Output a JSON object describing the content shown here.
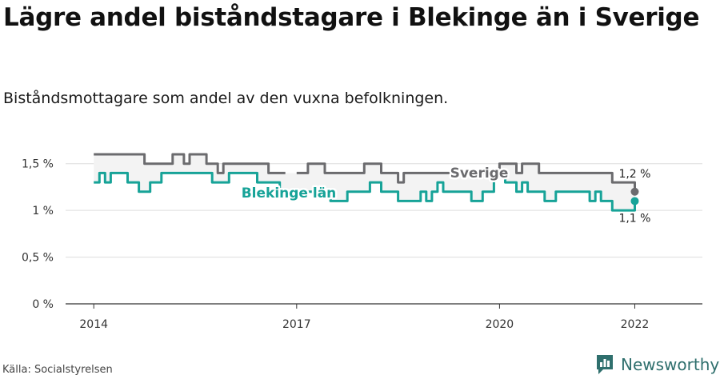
{
  "header": {
    "title": "Lägre andel biståndstagare i Blekinge än i Sverige",
    "subtitle": "Biståndsmottagare som andel av den vuxna befolkningen."
  },
  "footer": {
    "source": "Källa: Socialstyrelsen",
    "brand": "Newsworthy"
  },
  "colors": {
    "sverige": "#6b6b6e",
    "blekinge": "#17a398",
    "grid": "#dddddd",
    "band": "#f3f3f3",
    "brand": "#2f6f6d"
  },
  "chart_data": {
    "type": "line",
    "x_axis": {
      "type": "date",
      "range": [
        "2013-08",
        "2023-01"
      ],
      "ticks": [
        "2014",
        "2017",
        "2020",
        "2022"
      ]
    },
    "y_axis": {
      "range": [
        0,
        1.6
      ],
      "ticks": [
        "0 %",
        "0,5 %",
        "1 %",
        "1,5 %"
      ],
      "tick_values": [
        0,
        0.5,
        1,
        1.5
      ]
    },
    "grid": "horizontal",
    "series": [
      {
        "name": "Sverige",
        "end_label": "1,2 %",
        "x": [
          "2014-01",
          "2014-02",
          "2014-03",
          "2014-04",
          "2014-05",
          "2014-06",
          "2014-07",
          "2014-08",
          "2014-09",
          "2014-10",
          "2014-11",
          "2014-12",
          "2015-01",
          "2015-02",
          "2015-03",
          "2015-04",
          "2015-05",
          "2015-06",
          "2015-07",
          "2015-08",
          "2015-09",
          "2015-10",
          "2015-11",
          "2015-12",
          "2016-01",
          "2016-02",
          "2016-03",
          "2016-04",
          "2016-05",
          "2016-06",
          "2016-07",
          "2016-08",
          "2016-09",
          "2016-10",
          "2016-11",
          "2016-12",
          "2017-01",
          "2017-02",
          "2017-03",
          "2017-04",
          "2017-05",
          "2017-06",
          "2017-07",
          "2017-08",
          "2017-09",
          "2017-10",
          "2017-11",
          "2017-12",
          "2018-01",
          "2018-02",
          "2018-03",
          "2018-04",
          "2018-05",
          "2018-06",
          "2018-07",
          "2018-08",
          "2018-09",
          "2018-10",
          "2018-11",
          "2018-12",
          "2019-01",
          "2019-02",
          "2019-03",
          "2019-04",
          "2019-05",
          "2019-06",
          "2019-07",
          "2019-08",
          "2019-09",
          "2019-10",
          "2019-11",
          "2019-12",
          "2020-01",
          "2020-02",
          "2020-03",
          "2020-04",
          "2020-05",
          "2020-06",
          "2020-07",
          "2020-08",
          "2020-09",
          "2020-10",
          "2020-11",
          "2020-12",
          "2021-01",
          "2021-02",
          "2021-03",
          "2021-04",
          "2021-05",
          "2021-06",
          "2021-07",
          "2021-08",
          "2021-09",
          "2021-10",
          "2021-11",
          "2021-12",
          "2022-01"
        ],
        "values": [
          1.6,
          1.6,
          1.6,
          1.6,
          1.6,
          1.6,
          1.6,
          1.6,
          1.6,
          1.5,
          1.5,
          1.5,
          1.5,
          1.5,
          1.6,
          1.6,
          1.5,
          1.6,
          1.6,
          1.6,
          1.5,
          1.5,
          1.4,
          1.5,
          1.5,
          1.5,
          1.5,
          1.5,
          1.5,
          1.5,
          1.5,
          1.4,
          1.4,
          1.4,
          1.4,
          null,
          1.4,
          1.4,
          1.5,
          1.5,
          1.5,
          1.4,
          1.4,
          1.4,
          1.4,
          1.4,
          1.4,
          1.4,
          1.5,
          1.5,
          1.5,
          1.4,
          1.4,
          1.4,
          1.3,
          1.4,
          1.4,
          1.4,
          1.4,
          1.4,
          1.4,
          1.4,
          1.4,
          1.4,
          1.4,
          1.4,
          1.4,
          1.4,
          1.4,
          1.4,
          1.4,
          1.4,
          1.5,
          1.5,
          1.5,
          1.4,
          1.5,
          1.5,
          1.5,
          1.4,
          1.4,
          1.4,
          1.4,
          1.4,
          1.4,
          1.4,
          1.4,
          1.4,
          1.4,
          1.4,
          1.4,
          1.4,
          1.3,
          1.3,
          1.3,
          1.3,
          1.2
        ]
      },
      {
        "name": "Blekinge län",
        "end_label": "1,1 %",
        "x": [
          "2014-01",
          "2014-02",
          "2014-03",
          "2014-04",
          "2014-05",
          "2014-06",
          "2014-07",
          "2014-08",
          "2014-09",
          "2014-10",
          "2014-11",
          "2014-12",
          "2015-01",
          "2015-02",
          "2015-03",
          "2015-04",
          "2015-05",
          "2015-06",
          "2015-07",
          "2015-08",
          "2015-09",
          "2015-10",
          "2015-11",
          "2015-12",
          "2016-01",
          "2016-02",
          "2016-03",
          "2016-04",
          "2016-05",
          "2016-06",
          "2016-07",
          "2016-08",
          "2016-09",
          "2016-10",
          "2016-11",
          "2016-12",
          "2017-01",
          "2017-02",
          "2017-03",
          "2017-04",
          "2017-05",
          "2017-06",
          "2017-07",
          "2017-08",
          "2017-09",
          "2017-10",
          "2017-11",
          "2017-12",
          "2018-01",
          "2018-02",
          "2018-03",
          "2018-04",
          "2018-05",
          "2018-06",
          "2018-07",
          "2018-08",
          "2018-09",
          "2018-10",
          "2018-11",
          "2018-12",
          "2019-01",
          "2019-02",
          "2019-03",
          "2019-04",
          "2019-05",
          "2019-06",
          "2019-07",
          "2019-08",
          "2019-09",
          "2019-10",
          "2019-11",
          "2019-12",
          "2020-01",
          "2020-02",
          "2020-03",
          "2020-04",
          "2020-05",
          "2020-06",
          "2020-07",
          "2020-08",
          "2020-09",
          "2020-10",
          "2020-11",
          "2020-12",
          "2021-01",
          "2021-02",
          "2021-03",
          "2021-04",
          "2021-05",
          "2021-06",
          "2021-07",
          "2021-08",
          "2021-09",
          "2021-10",
          "2021-11",
          "2021-12",
          "2022-01"
        ],
        "values": [
          1.3,
          1.4,
          1.3,
          1.4,
          1.4,
          1.4,
          1.3,
          1.3,
          1.2,
          1.2,
          1.3,
          1.3,
          1.4,
          1.4,
          1.4,
          1.4,
          1.4,
          1.4,
          1.4,
          1.4,
          1.4,
          1.3,
          1.3,
          1.3,
          1.4,
          1.4,
          1.4,
          1.4,
          1.4,
          1.3,
          1.3,
          1.3,
          1.3,
          1.2,
          1.2,
          1.2,
          1.2,
          1.2,
          1.2,
          1.2,
          1.2,
          1.2,
          1.1,
          1.1,
          1.1,
          1.2,
          1.2,
          1.2,
          1.2,
          1.3,
          1.3,
          1.2,
          1.2,
          1.2,
          1.1,
          1.1,
          1.1,
          1.1,
          1.2,
          1.1,
          1.2,
          1.3,
          1.2,
          1.2,
          1.2,
          1.2,
          1.2,
          1.1,
          1.1,
          1.2,
          1.2,
          1.4,
          1.4,
          1.3,
          1.3,
          1.2,
          1.3,
          1.2,
          1.2,
          1.2,
          1.1,
          1.1,
          1.2,
          1.2,
          1.2,
          1.2,
          1.2,
          1.2,
          1.1,
          1.2,
          1.1,
          1.1,
          1.0,
          1.0,
          1.0,
          1.0,
          1.1
        ]
      }
    ]
  }
}
